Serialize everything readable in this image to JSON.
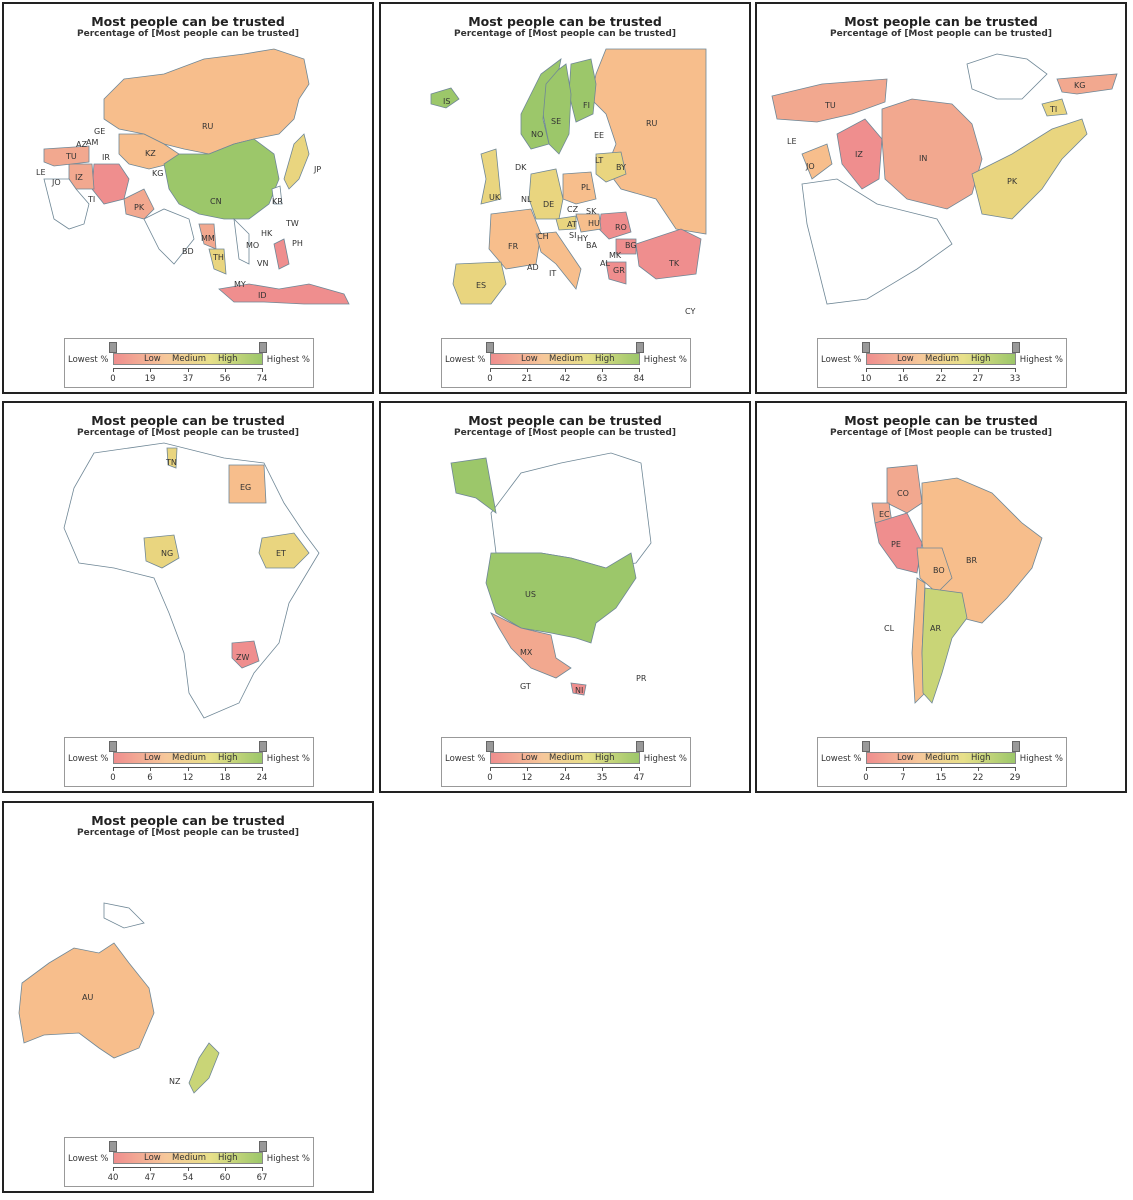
{
  "panel_title": "Most people can be trusted",
  "panel_subtitle": "Percentage of [Most people can be trusted]",
  "legend": {
    "lowest": "Lowest %",
    "highest": "Highest %",
    "low": "Low",
    "medium": "Medium",
    "high": "High"
  },
  "colors": {
    "low": "#ef8e8e",
    "lowmed": "#f2a88f",
    "medium": "#f7be8c",
    "medhigh": "#e9d57f",
    "high": "#9cc76a",
    "none": "#ffffff",
    "border": "#6f8796"
  },
  "panels": [
    {
      "region": "Asia",
      "ticks": [
        "0",
        "19",
        "37",
        "56",
        "74"
      ],
      "labels": [
        "RU",
        "GE",
        "AM",
        "AZ",
        "TU",
        "LE",
        "JO",
        "IZ",
        "IR",
        "KZ",
        "KG",
        "CN",
        "PK",
        "TI",
        "JP",
        "KR",
        "TW",
        "HK",
        "PH",
        "MO",
        "BD",
        "MM",
        "TH",
        "VN",
        "MY",
        "ID"
      ]
    },
    {
      "region": "Europe",
      "ticks": [
        "0",
        "21",
        "42",
        "63",
        "84"
      ],
      "labels": [
        "IS",
        "FI",
        "SE",
        "NO",
        "RU",
        "EE",
        "LT",
        "BY",
        "DK",
        "UK",
        "NL",
        "PL",
        "DE",
        "CZ",
        "SK",
        "AT",
        "HU",
        "RO",
        "CH",
        "SI",
        "FR",
        "HY",
        "BA",
        "BG",
        "IT",
        "AD",
        "ES",
        "TK",
        "CY",
        "MK",
        "GR",
        "AL"
      ]
    },
    {
      "region": "Middle East",
      "ticks": [
        "10",
        "16",
        "22",
        "27",
        "33"
      ],
      "labels": [
        "TU",
        "KG",
        "LE",
        "TI",
        "IZ",
        "IN",
        "JO",
        "PK"
      ]
    },
    {
      "region": "Africa",
      "ticks": [
        "0",
        "6",
        "12",
        "18",
        "24"
      ],
      "labels": [
        "TN",
        "EG",
        "NG",
        "ET",
        "ZW"
      ]
    },
    {
      "region": "North America",
      "ticks": [
        "0",
        "12",
        "24",
        "35",
        "47"
      ],
      "labels": [
        "US",
        "MX",
        "GT",
        "NI",
        "PR"
      ]
    },
    {
      "region": "South America",
      "ticks": [
        "0",
        "7",
        "15",
        "22",
        "29"
      ],
      "labels": [
        "CO",
        "EC",
        "PE",
        "BR",
        "BO",
        "CL",
        "AR"
      ]
    },
    {
      "region": "Oceania",
      "ticks": [
        "40",
        "47",
        "54",
        "60",
        "67"
      ],
      "labels": [
        "AU",
        "NZ"
      ]
    }
  ]
}
